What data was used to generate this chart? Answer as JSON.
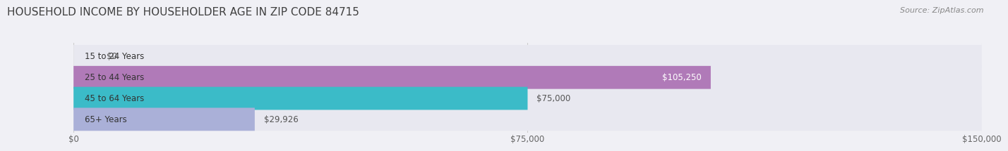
{
  "title": "HOUSEHOLD INCOME BY HOUSEHOLDER AGE IN ZIP CODE 84715",
  "source": "Source: ZipAtlas.com",
  "categories": [
    "15 to 24 Years",
    "25 to 44 Years",
    "45 to 64 Years",
    "65+ Years"
  ],
  "values": [
    0,
    105250,
    75000,
    29926
  ],
  "bar_colors": [
    "#a8c8e8",
    "#b07ab8",
    "#3bbbc8",
    "#aab0d8"
  ],
  "bar_bg_color": "#e8e8f0",
  "value_labels": [
    "$0",
    "$105,250",
    "$75,000",
    "$29,926"
  ],
  "value_label_inside": [
    false,
    true,
    false,
    false
  ],
  "xlim": [
    0,
    150000
  ],
  "xticks": [
    0,
    75000,
    150000
  ],
  "xticklabels": [
    "$0",
    "$75,000",
    "$150,000"
  ],
  "title_color": "#404040",
  "title_fontsize": 11,
  "source_fontsize": 8,
  "cat_fontsize": 8.5,
  "val_fontsize": 8.5,
  "tick_fontsize": 8.5,
  "bar_height": 0.55,
  "background_color": "#f0f0f5",
  "grid_color": "#cccccc",
  "cat_label_color": "#333333",
  "val_label_color_outside": "#555555",
  "val_label_color_inside": "#ffffff"
}
